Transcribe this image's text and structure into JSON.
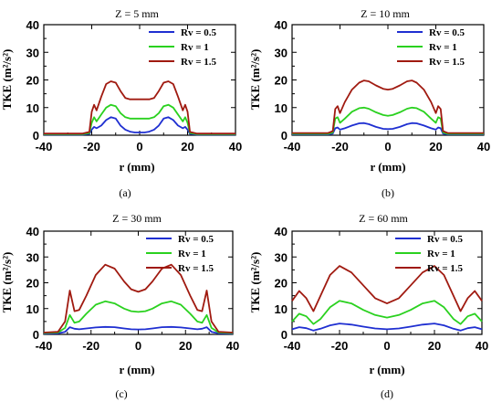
{
  "figure": {
    "panel_labels": [
      "(a)",
      "(b)",
      "(c)",
      "(d)"
    ]
  },
  "chart_data": [
    {
      "type": "line",
      "title": "Z = 5 mm",
      "xlabel": "r (mm)",
      "ylabel": "TKE (m²/s²)",
      "xlim": [
        -40,
        40
      ],
      "ylim": [
        0,
        40
      ],
      "xticks": [
        -40,
        -20,
        0,
        20,
        40
      ],
      "yticks": [
        0,
        10,
        20,
        30,
        40
      ],
      "legend_position": "top-right",
      "series": [
        {
          "name": "Rv = 0.5",
          "color": "#1f2fd1",
          "x": [
            -40,
            -24,
            -21,
            -20,
            -19,
            -18,
            -16,
            -14,
            -12,
            -10,
            -8,
            -6,
            -4,
            -2,
            0,
            2,
            4,
            6,
            8,
            10,
            12,
            14,
            16,
            18,
            19,
            20,
            21,
            24,
            40
          ],
          "y": [
            0.2,
            0.2,
            0.5,
            2,
            3,
            2.5,
            3.5,
            5.5,
            6.5,
            6,
            3.5,
            2,
            1.3,
            1,
            1,
            1,
            1.3,
            2,
            3.5,
            6,
            6.5,
            5.5,
            3.5,
            2.5,
            3,
            2,
            0.5,
            0.2,
            0.2
          ]
        },
        {
          "name": "Rv = 1",
          "color": "#2ad11f",
          "x": [
            -40,
            -24,
            -21,
            -20,
            -19,
            -18,
            -16,
            -14,
            -12,
            -10,
            -8,
            -6,
            -4,
            -2,
            0,
            2,
            4,
            6,
            8,
            10,
            12,
            14,
            16,
            18,
            19,
            20,
            21,
            24,
            40
          ],
          "y": [
            0.4,
            0.4,
            0.8,
            4.5,
            6.5,
            5,
            7.5,
            10,
            11,
            10.5,
            8,
            6.5,
            6,
            6,
            6,
            6,
            6,
            6.5,
            8,
            10.5,
            11,
            10,
            7.5,
            5,
            6.5,
            4.5,
            0.8,
            0.4,
            0.4
          ]
        },
        {
          "name": "Rv = 1.5",
          "color": "#a01a10",
          "x": [
            -40,
            -24,
            -21,
            -20,
            -19,
            -18,
            -16,
            -14,
            -12,
            -10,
            -8,
            -6,
            -4,
            -2,
            0,
            2,
            4,
            6,
            8,
            10,
            12,
            14,
            16,
            18,
            19,
            20,
            21,
            24,
            40
          ],
          "y": [
            0.6,
            0.6,
            1.2,
            8.5,
            11,
            9,
            14,
            18.5,
            19.5,
            19,
            16,
            13.5,
            13,
            13,
            13,
            13,
            13,
            13.5,
            16,
            19,
            19.5,
            18.5,
            14,
            9,
            11,
            8.5,
            1.2,
            0.6,
            0.6
          ]
        }
      ]
    },
    {
      "type": "line",
      "title": "Z = 10 mm",
      "xlabel": "r (mm)",
      "ylabel": "TKE (m²/s²)",
      "xlim": [
        -40,
        40
      ],
      "ylim": [
        0,
        40
      ],
      "xticks": [
        -40,
        -20,
        0,
        20,
        40
      ],
      "yticks": [
        0,
        10,
        20,
        30,
        40
      ],
      "legend_position": "top-right",
      "series": [
        {
          "name": "Rv = 0.5",
          "color": "#1f2fd1",
          "x": [
            -40,
            -25,
            -23,
            -22,
            -21,
            -20,
            -18,
            -15,
            -12,
            -10,
            -8,
            -5,
            -2,
            0,
            2,
            5,
            8,
            10,
            12,
            15,
            18,
            20,
            21,
            22,
            23,
            25,
            40
          ],
          "y": [
            0.3,
            0.3,
            0.6,
            2.5,
            2.8,
            2,
            2.5,
            3.5,
            4.3,
            4.4,
            4,
            3,
            2.3,
            2.2,
            2.3,
            3,
            4,
            4.4,
            4.3,
            3.5,
            2.5,
            2,
            2.8,
            2.5,
            0.6,
            0.3,
            0.3
          ]
        },
        {
          "name": "Rv = 1",
          "color": "#2ad11f",
          "x": [
            -40,
            -25,
            -23,
            -22,
            -21,
            -20,
            -18,
            -15,
            -12,
            -10,
            -8,
            -5,
            -2,
            0,
            2,
            5,
            8,
            10,
            12,
            15,
            18,
            20,
            21,
            22,
            23,
            25,
            40
          ],
          "y": [
            0.5,
            0.5,
            1,
            6,
            6.5,
            4.5,
            6,
            8.5,
            9.8,
            10,
            9.6,
            8.3,
            7.3,
            7,
            7.3,
            8.3,
            9.6,
            10,
            9.8,
            8.5,
            6,
            4.5,
            6.5,
            6,
            1,
            0.5,
            0.5
          ]
        },
        {
          "name": "Rv = 1.5",
          "color": "#a01a10",
          "x": [
            -40,
            -25,
            -23,
            -22,
            -21,
            -20,
            -18,
            -15,
            -12,
            -10,
            -8,
            -5,
            -2,
            0,
            2,
            5,
            8,
            10,
            12,
            15,
            18,
            20,
            21,
            22,
            23,
            25,
            40
          ],
          "y": [
            0.8,
            0.8,
            1.5,
            9.5,
            10.5,
            8,
            12,
            16.5,
            19,
            19.8,
            19.5,
            18,
            16.8,
            16.5,
            16.8,
            18,
            19.5,
            19.8,
            19,
            16.5,
            12,
            8,
            10.5,
            9.5,
            1.5,
            0.8,
            0.8
          ]
        }
      ]
    },
    {
      "type": "line",
      "title": "Z = 30 mm",
      "xlabel": "r (mm)",
      "ylabel": "TKE (m²/s²)",
      "xlim": [
        -40,
        40
      ],
      "ylim": [
        0,
        40
      ],
      "xticks": [
        -40,
        -20,
        0,
        20,
        40
      ],
      "yticks": [
        0,
        10,
        20,
        30,
        40
      ],
      "legend_position": "top-right",
      "series": [
        {
          "name": "Rv = 0.5",
          "color": "#1f2fd1",
          "x": [
            -40,
            -34,
            -31,
            -29,
            -27,
            -25,
            -22,
            -18,
            -14,
            -10,
            -6,
            -3,
            0,
            3,
            6,
            10,
            14,
            18,
            22,
            25,
            27,
            29,
            31,
            34,
            40
          ],
          "y": [
            0.3,
            0.4,
            1,
            2.8,
            2.2,
            2,
            2.3,
            2.7,
            2.9,
            2.8,
            2.3,
            2,
            1.9,
            2,
            2.3,
            2.8,
            2.9,
            2.7,
            2.3,
            2,
            2.2,
            2.8,
            1,
            0.4,
            0.3
          ]
        },
        {
          "name": "Rv = 1",
          "color": "#2ad11f",
          "x": [
            -40,
            -34,
            -31,
            -29,
            -27,
            -25,
            -22,
            -18,
            -14,
            -10,
            -6,
            -3,
            0,
            3,
            6,
            10,
            14,
            18,
            22,
            25,
            27,
            29,
            31,
            34,
            40
          ],
          "y": [
            0.5,
            0.7,
            2.5,
            7.5,
            4.5,
            5,
            8,
            11.5,
            12.8,
            12,
            10,
            9,
            8.7,
            9,
            10,
            12,
            12.8,
            11.5,
            8,
            5,
            4.5,
            7.5,
            2.5,
            0.7,
            0.5
          ]
        },
        {
          "name": "Rv = 1.5",
          "color": "#a01a10",
          "x": [
            -40,
            -34,
            -31,
            -29,
            -27,
            -25,
            -22,
            -18,
            -14,
            -10,
            -6,
            -3,
            0,
            3,
            6,
            10,
            14,
            18,
            22,
            25,
            27,
            29,
            31,
            34,
            40
          ],
          "y": [
            0.7,
            1,
            5,
            17,
            9,
            9.5,
            15,
            23,
            27,
            25.5,
            20.5,
            17.5,
            16.5,
            17.5,
            20.5,
            25.5,
            27,
            23,
            15,
            9.5,
            9,
            17,
            5,
            1,
            0.7
          ]
        }
      ]
    },
    {
      "type": "line",
      "title": "Z = 60 mm",
      "xlabel": "r (mm)",
      "ylabel": "TKE (m²/s²)",
      "xlim": [
        -40,
        40
      ],
      "ylim": [
        0,
        40
      ],
      "xticks": [
        -40,
        -20,
        0,
        20,
        40
      ],
      "yticks": [
        0,
        10,
        20,
        30,
        40
      ],
      "legend_position": "top-right",
      "series": [
        {
          "name": "Rv = 0.5",
          "color": "#1f2fd1",
          "x": [
            -40,
            -37,
            -34,
            -31,
            -28,
            -24,
            -20,
            -15,
            -10,
            -5,
            0,
            5,
            10,
            15,
            20,
            24,
            28,
            31,
            34,
            37,
            40
          ],
          "y": [
            2,
            2.8,
            2.4,
            1.5,
            2.2,
            3.5,
            4.2,
            3.8,
            3,
            2.3,
            2,
            2.3,
            3,
            3.8,
            4.2,
            3.5,
            2.2,
            1.5,
            2.4,
            2.8,
            2
          ]
        },
        {
          "name": "Rv = 1",
          "color": "#2ad11f",
          "x": [
            -40,
            -37,
            -34,
            -31,
            -28,
            -24,
            -20,
            -15,
            -10,
            -5,
            0,
            5,
            10,
            15,
            20,
            24,
            28,
            31,
            34,
            37,
            40
          ],
          "y": [
            5,
            8,
            7,
            4,
            6,
            10.5,
            13,
            12,
            9.5,
            7.5,
            6.5,
            7.5,
            9.5,
            12,
            13,
            10.5,
            6,
            4,
            7,
            8,
            5
          ]
        },
        {
          "name": "Rv = 1.5",
          "color": "#a01a10",
          "x": [
            -40,
            -37,
            -34,
            -31,
            -28,
            -24,
            -20,
            -15,
            -10,
            -5,
            0,
            5,
            10,
            15,
            20,
            24,
            28,
            31,
            34,
            37,
            40
          ],
          "y": [
            13,
            16.8,
            14,
            9,
            15,
            23,
            26.5,
            24,
            19,
            14,
            12,
            14,
            19,
            24,
            26.5,
            23,
            15,
            9,
            14,
            16.8,
            13
          ]
        }
      ]
    }
  ]
}
